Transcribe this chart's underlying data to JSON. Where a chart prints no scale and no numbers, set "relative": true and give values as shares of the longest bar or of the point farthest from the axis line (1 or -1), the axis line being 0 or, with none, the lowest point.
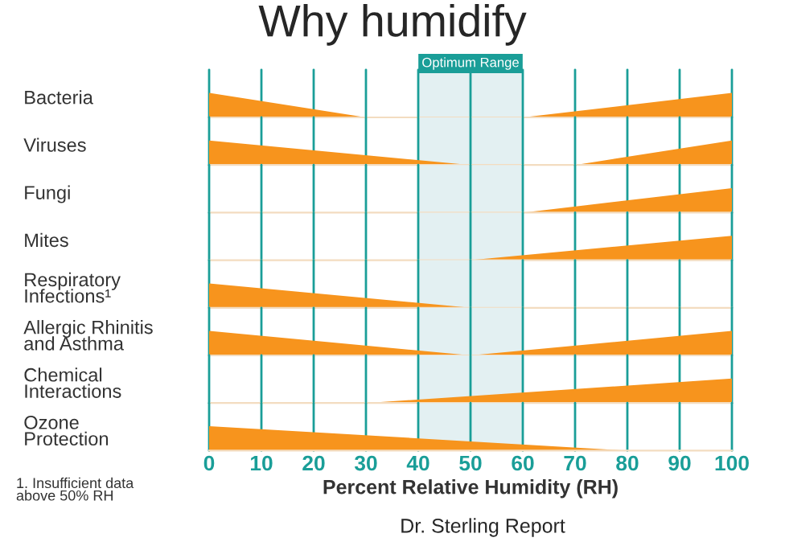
{
  "chart_data": [
    {
      "type": "area",
      "title": "Why humidify",
      "ylabel": "Bacteria",
      "relative": true,
      "x": [
        0,
        30,
        60,
        100
      ],
      "series": [
        {
          "color": "#f7941d",
          "values": [
            1,
            0,
            0,
            1
          ]
        }
      ],
      "xlim": [
        0,
        100
      ],
      "xticks": [
        0,
        10,
        20,
        30,
        40,
        50,
        60,
        70,
        80,
        90,
        100
      ],
      "tick_labels": false,
      "grid": "x",
      "bands": [
        {
          "axis": "x",
          "from": 40,
          "to": 60,
          "label": "Optimum Range",
          "color": "#e3f0f2"
        }
      ]
    },
    {
      "type": "area",
      "ylabel": "Viruses",
      "relative": true,
      "x": [
        0,
        50,
        70,
        100
      ],
      "series": [
        {
          "color": "#f7941d",
          "values": [
            1,
            0,
            0,
            1
          ]
        }
      ],
      "xlim": [
        0,
        100
      ],
      "xticks": [
        0,
        10,
        20,
        30,
        40,
        50,
        60,
        70,
        80,
        90,
        100
      ],
      "tick_labels": false,
      "grid": "x",
      "bands": [
        {
          "axis": "x",
          "from": 40,
          "to": 60,
          "color": "#e3f0f2"
        }
      ]
    },
    {
      "type": "area",
      "ylabel": "Fungi",
      "relative": true,
      "x": [
        0,
        60,
        100
      ],
      "series": [
        {
          "color": "#f7941d",
          "values": [
            0,
            0,
            1
          ]
        }
      ],
      "xlim": [
        0,
        100
      ],
      "xticks": [
        0,
        10,
        20,
        30,
        40,
        50,
        60,
        70,
        80,
        90,
        100
      ],
      "tick_labels": false,
      "grid": "x",
      "bands": [
        {
          "axis": "x",
          "from": 40,
          "to": 60,
          "color": "#e3f0f2"
        }
      ]
    },
    {
      "type": "area",
      "ylabel": "Mites",
      "relative": true,
      "x": [
        0,
        50,
        100
      ],
      "series": [
        {
          "color": "#f7941d",
          "values": [
            0,
            0,
            1
          ]
        }
      ],
      "xlim": [
        0,
        100
      ],
      "xticks": [
        0,
        10,
        20,
        30,
        40,
        50,
        60,
        70,
        80,
        90,
        100
      ],
      "tick_labels": false,
      "grid": "x",
      "bands": [
        {
          "axis": "x",
          "from": 40,
          "to": 60,
          "color": "#e3f0f2"
        }
      ]
    },
    {
      "type": "area",
      "ylabel": "Respiratory\nInfections¹",
      "relative": true,
      "x": [
        0,
        50,
        100
      ],
      "series": [
        {
          "color": "#f7941d",
          "values": [
            1,
            0,
            0
          ]
        }
      ],
      "xlim": [
        0,
        100
      ],
      "xticks": [
        0,
        10,
        20,
        30,
        40,
        50,
        60,
        70,
        80,
        90,
        100
      ],
      "tick_labels": false,
      "grid": "x",
      "bands": [
        {
          "axis": "x",
          "from": 40,
          "to": 60,
          "color": "#e3f0f2"
        }
      ]
    },
    {
      "type": "area",
      "ylabel": "Allergic Rhinitis\nand Asthma",
      "relative": true,
      "x": [
        0,
        50,
        100
      ],
      "series": [
        {
          "color": "#f7941d",
          "values": [
            1,
            0,
            1
          ]
        }
      ],
      "xlim": [
        0,
        100
      ],
      "xticks": [
        0,
        10,
        20,
        30,
        40,
        50,
        60,
        70,
        80,
        90,
        100
      ],
      "tick_labels": false,
      "grid": "x",
      "bands": [
        {
          "axis": "x",
          "from": 40,
          "to": 60,
          "color": "#e3f0f2"
        }
      ]
    },
    {
      "type": "area",
      "ylabel": "Chemical\nInteractions",
      "relative": true,
      "x": [
        0,
        30,
        100
      ],
      "series": [
        {
          "color": "#f7941d",
          "values": [
            0,
            0,
            1
          ]
        }
      ],
      "xlim": [
        0,
        100
      ],
      "xticks": [
        0,
        10,
        20,
        30,
        40,
        50,
        60,
        70,
        80,
        90,
        100
      ],
      "tick_labels": false,
      "grid": "x",
      "bands": [
        {
          "axis": "x",
          "from": 40,
          "to": 60,
          "color": "#e3f0f2"
        }
      ]
    },
    {
      "type": "area",
      "ylabel": "Ozone\nProtection",
      "xlabel": "Percent Relative Humidity (RH)",
      "relative": true,
      "x": [
        0,
        80,
        100
      ],
      "series": [
        {
          "color": "#f7941d",
          "values": [
            1,
            0,
            0
          ]
        }
      ],
      "xlim": [
        0,
        100
      ],
      "xticks": [
        0,
        10,
        20,
        30,
        40,
        50,
        60,
        70,
        80,
        90,
        100
      ],
      "tick_labels": "x",
      "grid": "x",
      "bands": [
        {
          "axis": "x",
          "from": 40,
          "to": 60,
          "color": "#e3f0f2"
        }
      ],
      "annotations": [
        "1. Insufficient data\nabove 50% RH",
        "Dr. Sterling Report"
      ]
    }
  ]
}
